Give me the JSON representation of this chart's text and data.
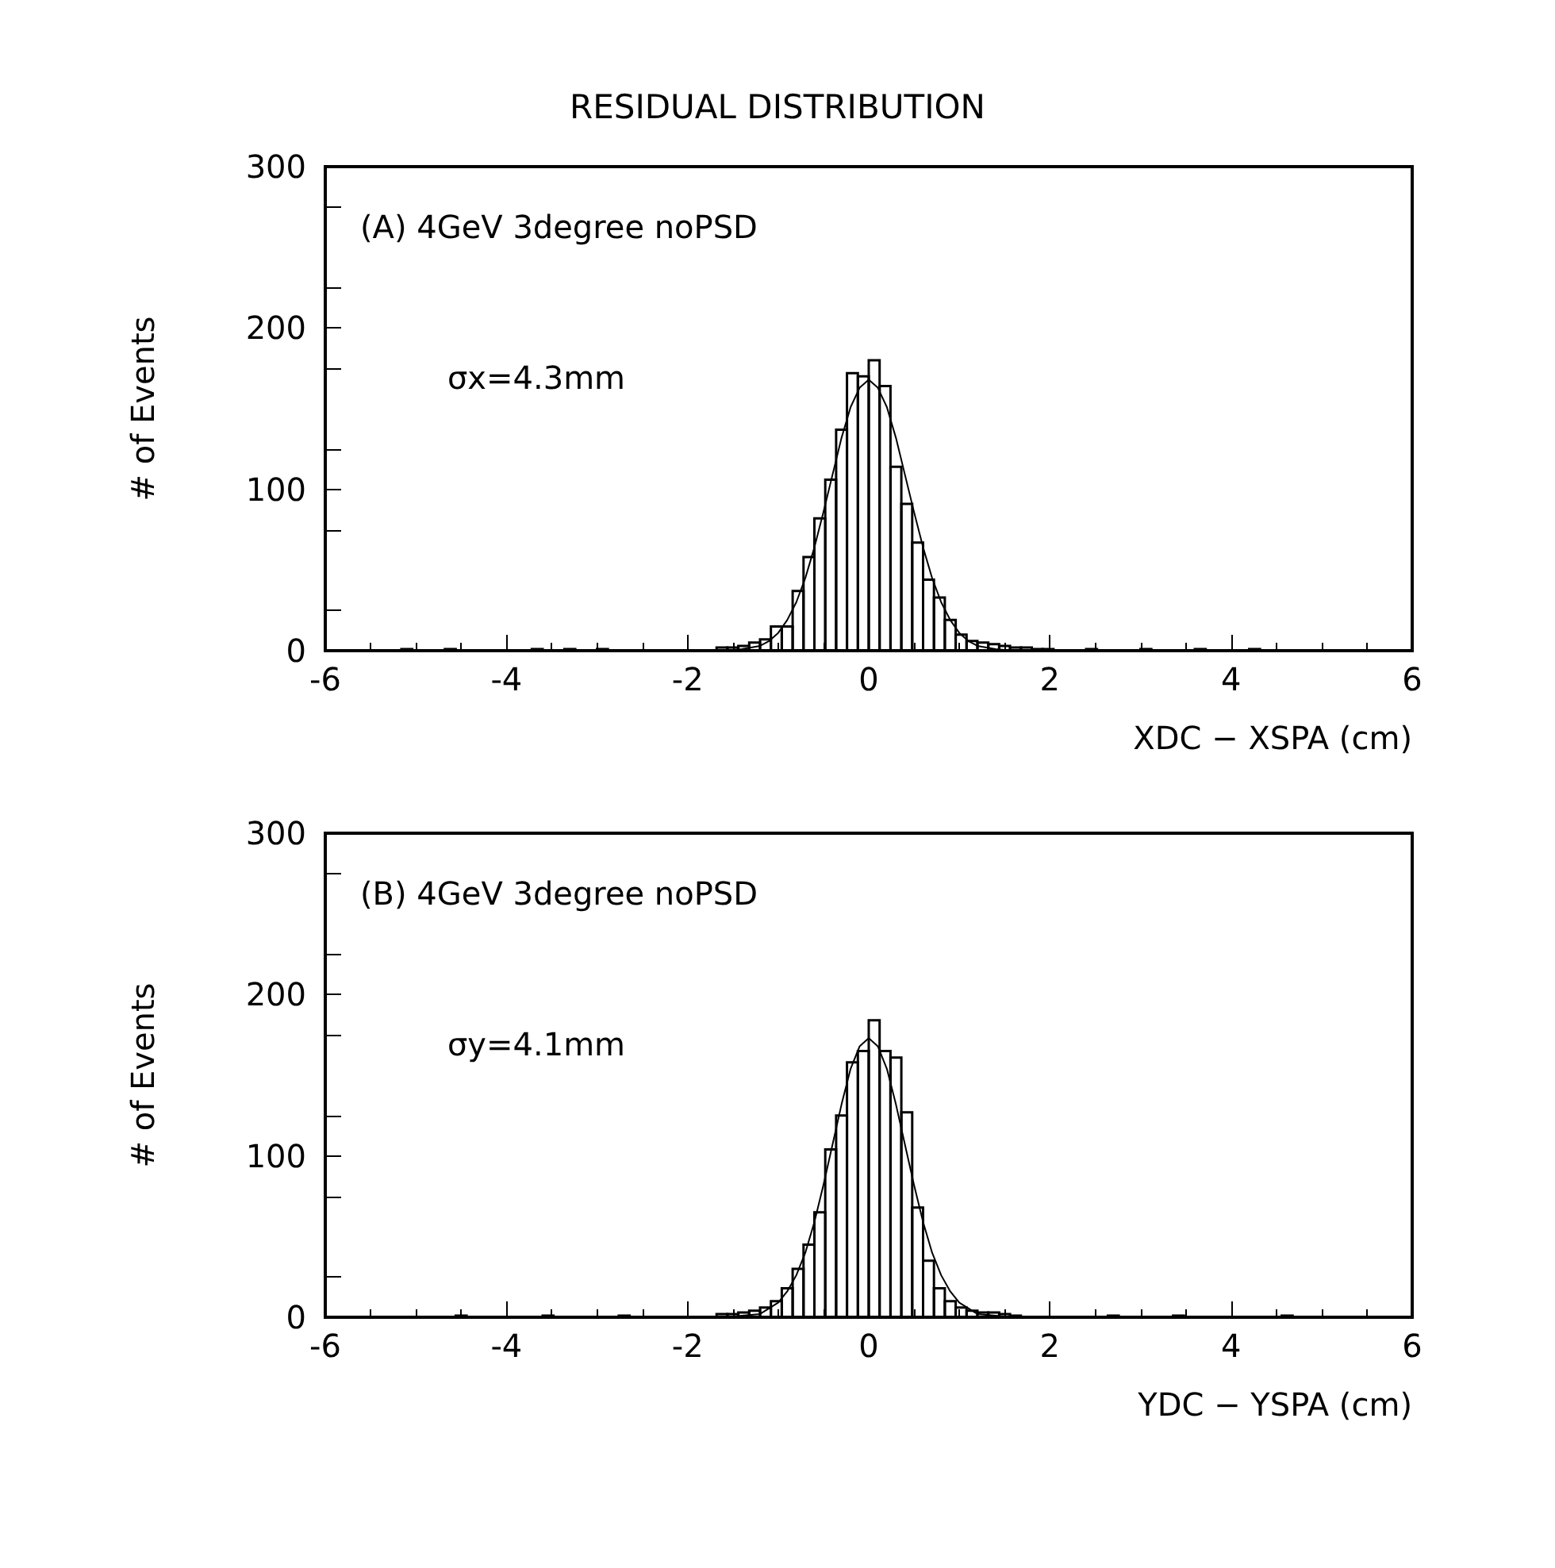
{
  "chart_data": [
    {
      "type": "histogram",
      "title": "RESIDUAL DISTRIBUTION",
      "xlabel": "XDC − XSPA (cm)",
      "ylabel": "# of Events",
      "annotations": [
        "(A) 4GeV 3degree noPSD",
        "σx=4.3mm"
      ],
      "xlim": [
        -6,
        6
      ],
      "xticks": [
        -6,
        -4,
        -2,
        0,
        2,
        4,
        6
      ],
      "ylim": [
        0,
        300
      ],
      "yticks": [
        0,
        100,
        200,
        300
      ],
      "marker": "none",
      "series": [
        {
          "type": "histogram",
          "color": "#000000",
          "bins": [
            -6,
            -5.88,
            -5.76,
            -5.64,
            -5.52,
            -5.4,
            -5.28,
            -5.16,
            -5.04,
            -4.92,
            -4.8,
            -4.68,
            -4.56,
            -4.44,
            -4.32,
            -4.2,
            -4.08,
            -3.96,
            -3.84,
            -3.72,
            -3.6,
            -3.48,
            -3.36,
            -3.24,
            -3.12,
            -3,
            -2.88,
            -2.76,
            -2.64,
            -2.52,
            -2.4,
            -2.28,
            -2.16,
            -2.04,
            -1.92,
            -1.8,
            -1.68,
            -1.56,
            -1.44,
            -1.32,
            -1.2,
            -1.08,
            -0.96,
            -0.84,
            -0.72,
            -0.6,
            -0.48,
            -0.36,
            -0.24,
            -0.12,
            0,
            0.12,
            0.24,
            0.36,
            0.48,
            0.6,
            0.72,
            0.84,
            0.96,
            1.08,
            1.2,
            1.32,
            1.44,
            1.56,
            1.68,
            1.8,
            1.92,
            2.04,
            2.16,
            2.28,
            2.4,
            2.52,
            2.64,
            2.76,
            2.88,
            3,
            3.12,
            3.24,
            3.36,
            3.48,
            3.6,
            3.72,
            3.84,
            3.96,
            4.08,
            4.2,
            4.32,
            4.44,
            4.56,
            4.68,
            4.8,
            4.92,
            5.04,
            5.16,
            5.28,
            5.4,
            5.52,
            5.64,
            5.76,
            5.88,
            6
          ],
          "values": [
            0,
            0,
            0,
            0,
            0,
            0,
            0,
            1,
            0,
            0,
            0,
            1,
            0,
            0,
            0,
            0,
            0,
            0,
            0,
            1,
            0,
            0,
            1,
            0,
            0,
            1,
            0,
            0,
            0,
            0,
            0,
            0,
            0,
            0,
            0,
            0,
            2,
            2,
            3,
            5,
            7,
            15,
            15,
            37,
            58,
            82,
            106,
            137,
            172,
            170,
            180,
            164,
            114,
            91,
            67,
            44,
            33,
            19,
            10,
            6,
            5,
            4,
            3,
            2,
            2,
            1,
            1,
            0,
            0,
            0,
            1,
            0,
            0,
            0,
            0,
            1,
            0,
            0,
            0,
            0,
            1,
            0,
            0,
            0,
            0,
            1,
            0,
            0,
            0,
            0,
            0,
            0,
            0,
            0,
            0,
            0,
            0,
            0,
            0,
            0
          ]
        },
        {
          "type": "line",
          "color": "#000000",
          "x": [
            -1.6,
            -1.4,
            -1.2,
            -1.1,
            -1,
            -0.9,
            -0.8,
            -0.7,
            -0.6,
            -0.5,
            -0.4,
            -0.3,
            -0.2,
            -0.1,
            0,
            0.1,
            0.2,
            0.3,
            0.4,
            0.5,
            0.6,
            0.7,
            0.8,
            0.9,
            1,
            1.1,
            1.2,
            1.4,
            1.6
          ],
          "values": [
            0,
            1,
            3,
            6,
            11,
            19,
            30,
            45,
            64,
            86,
            109,
            132,
            151,
            163,
            168,
            163,
            151,
            132,
            109,
            86,
            64,
            45,
            30,
            19,
            11,
            6,
            3,
            1,
            0
          ]
        }
      ]
    },
    {
      "type": "histogram",
      "xlabel": "YDC − YSPA (cm)",
      "ylabel": "# of Events",
      "annotations": [
        "(B) 4GeV 3degree noPSD",
        "σy=4.1mm"
      ],
      "xlim": [
        -6,
        6
      ],
      "xticks": [
        -6,
        -4,
        -2,
        0,
        2,
        4,
        6
      ],
      "ylim": [
        0,
        300
      ],
      "yticks": [
        0,
        100,
        200,
        300
      ],
      "marker": "none",
      "series": [
        {
          "type": "histogram",
          "color": "#000000",
          "bins": [
            -6,
            -5.88,
            -5.76,
            -5.64,
            -5.52,
            -5.4,
            -5.28,
            -5.16,
            -5.04,
            -4.92,
            -4.8,
            -4.68,
            -4.56,
            -4.44,
            -4.32,
            -4.2,
            -4.08,
            -3.96,
            -3.84,
            -3.72,
            -3.6,
            -3.48,
            -3.36,
            -3.24,
            -3.12,
            -3,
            -2.88,
            -2.76,
            -2.64,
            -2.52,
            -2.4,
            -2.28,
            -2.16,
            -2.04,
            -1.92,
            -1.8,
            -1.68,
            -1.56,
            -1.44,
            -1.32,
            -1.2,
            -1.08,
            -0.96,
            -0.84,
            -0.72,
            -0.6,
            -0.48,
            -0.36,
            -0.24,
            -0.12,
            0,
            0.12,
            0.24,
            0.36,
            0.48,
            0.6,
            0.72,
            0.84,
            0.96,
            1.08,
            1.2,
            1.32,
            1.44,
            1.56,
            1.68,
            1.8,
            1.92,
            2.04,
            2.16,
            2.28,
            2.4,
            2.52,
            2.64,
            2.76,
            2.88,
            3,
            3.12,
            3.24,
            3.36,
            3.48,
            3.6,
            3.72,
            3.84,
            3.96,
            4.08,
            4.2,
            4.32,
            4.44,
            4.56,
            4.68,
            4.8,
            4.92,
            5.04,
            5.16,
            5.28,
            5.4,
            5.52,
            5.64,
            5.76,
            5.88,
            6
          ],
          "values": [
            0,
            0,
            0,
            0,
            0,
            0,
            0,
            0,
            0,
            0,
            0,
            0,
            1,
            0,
            0,
            0,
            0,
            0,
            0,
            0,
            1,
            0,
            0,
            0,
            0,
            0,
            0,
            1,
            0,
            0,
            0,
            0,
            0,
            0,
            0,
            0,
            2,
            2,
            3,
            4,
            6,
            10,
            18,
            30,
            45,
            65,
            104,
            125,
            158,
            165,
            184,
            165,
            161,
            127,
            68,
            35,
            18,
            10,
            6,
            4,
            3,
            3,
            2,
            1,
            0,
            0,
            0,
            0,
            0,
            0,
            0,
            0,
            1,
            0,
            0,
            0,
            0,
            0,
            1,
            0,
            0,
            0,
            0,
            0,
            0,
            0,
            0,
            0,
            1,
            0,
            0,
            0,
            0,
            0,
            0,
            0,
            0,
            0,
            0,
            0
          ]
        },
        {
          "type": "line",
          "color": "#000000",
          "x": [
            -1.6,
            -1.4,
            -1.2,
            -1,
            -0.9,
            -0.8,
            -0.7,
            -0.6,
            -0.5,
            -0.4,
            -0.3,
            -0.2,
            -0.1,
            0,
            0.1,
            0.2,
            0.3,
            0.4,
            0.5,
            0.6,
            0.7,
            0.8,
            0.9,
            1,
            1.2,
            1.4,
            1.6
          ],
          "values": [
            0,
            1,
            2,
            9,
            16,
            26,
            40,
            59,
            82,
            107,
            132,
            154,
            168,
            173,
            168,
            154,
            132,
            107,
            82,
            59,
            40,
            26,
            16,
            9,
            2,
            1,
            0
          ]
        }
      ]
    }
  ]
}
